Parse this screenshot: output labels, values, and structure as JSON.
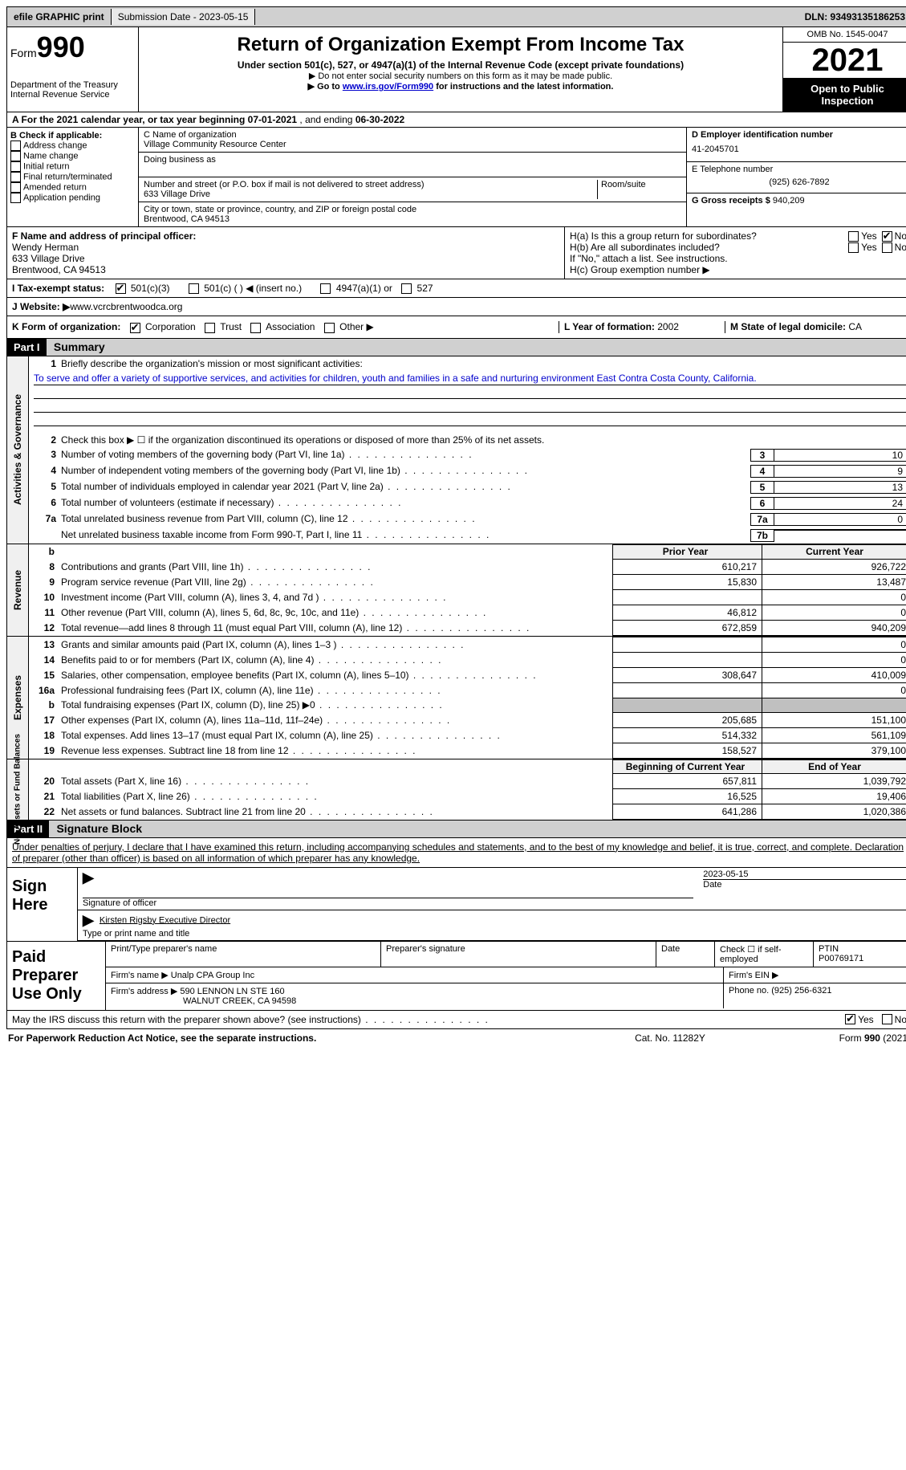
{
  "top": {
    "efile": "efile GRAPHIC print",
    "submission": "Submission Date - 2023-05-15",
    "dln": "DLN: 93493135186253"
  },
  "header": {
    "form_word": "Form",
    "form_num": "990",
    "dept": "Department of the Treasury",
    "irs": "Internal Revenue Service",
    "title": "Return of Organization Exempt From Income Tax",
    "sub": "Under section 501(c), 527, or 4947(a)(1) of the Internal Revenue Code (except private foundations)",
    "note1": "▶ Do not enter social security numbers on this form as it may be made public.",
    "note2_pre": "▶ Go to ",
    "note2_link": "www.irs.gov/Form990",
    "note2_post": " for instructions and the latest information.",
    "omb": "OMB No. 1545-0047",
    "year": "2021",
    "open": "Open to Public Inspection"
  },
  "rowA": {
    "text_pre": "A For the 2021 calendar year, or tax year beginning ",
    "begin": "07-01-2021",
    "mid": " , and ending ",
    "end": "06-30-2022"
  },
  "colB": {
    "title": "B Check if applicable:",
    "items": [
      "Address change",
      "Name change",
      "Initial return",
      "Final return/terminated",
      "Amended return",
      "Application pending"
    ]
  },
  "colC": {
    "name_label": "C Name of organization",
    "name": "Village Community Resource Center",
    "dba_label": "Doing business as",
    "street_label": "Number and street (or P.O. box if mail is not delivered to street address)",
    "room_label": "Room/suite",
    "street": "633 Village Drive",
    "city_label": "City or town, state or province, country, and ZIP or foreign postal code",
    "city": "Brentwood, CA  94513"
  },
  "colD": {
    "ein_label": "D Employer identification number",
    "ein": "41-2045701",
    "phone_label": "E Telephone number",
    "phone": "(925) 626-7892",
    "gross_label": "G Gross receipts $",
    "gross": "940,209"
  },
  "rowF": {
    "label": "F Name and address of principal officer:",
    "name": "Wendy Herman",
    "addr1": "633 Village Drive",
    "addr2": "Brentwood, CA  94513"
  },
  "rowH": {
    "ha": "H(a)  Is this a group return for subordinates?",
    "hb": "H(b)  Are all subordinates included?",
    "hb_note": "If \"No,\" attach a list. See instructions.",
    "hc": "H(c)  Group exemption number ▶",
    "yes": "Yes",
    "no": "No"
  },
  "rowI": {
    "label": "I  Tax-exempt status:",
    "c3": "501(c)(3)",
    "c": "501(c) (  ) ◀ (insert no.)",
    "a1": "4947(a)(1) or",
    "s527": "527"
  },
  "rowJ": {
    "label": "J  Website: ▶ ",
    "url": "www.vcrcbrentwoodca.org"
  },
  "rowK": {
    "label": "K Form of organization:",
    "corp": "Corporation",
    "trust": "Trust",
    "assoc": "Association",
    "other": "Other ▶",
    "L": "L Year of formation: ",
    "Lval": "2002",
    "M": "M State of legal domicile: ",
    "Mval": "CA"
  },
  "part1": {
    "header": "Part I",
    "title": "Summary",
    "side_act": "Activities & Governance",
    "side_rev": "Revenue",
    "side_exp": "Expenses",
    "side_net": "Net Assets or Fund Balances",
    "l1_label": "Briefly describe the organization's mission or most significant activities:",
    "l1_text": "To serve and offer a variety of supportive services, and activities for children, youth and families in a safe and nurturing environment East Contra Costa County, California.",
    "l2": "Check this box ▶ ☐ if the organization discontinued its operations or disposed of more than 25% of its net assets.",
    "l3": "Number of voting members of the governing body (Part VI, line 1a)",
    "l3v": "10",
    "l4": "Number of independent voting members of the governing body (Part VI, line 1b)",
    "l4v": "9",
    "l5": "Total number of individuals employed in calendar year 2021 (Part V, line 2a)",
    "l5v": "13",
    "l6": "Total number of volunteers (estimate if necessary)",
    "l6v": "24",
    "l7a": "Total unrelated business revenue from Part VIII, column (C), line 12",
    "l7av": "0",
    "l7b": "Net unrelated business taxable income from Form 990-T, Part I, line 11",
    "l7bv": "",
    "prior_h": "Prior Year",
    "curr_h": "Current Year",
    "rows_rev": [
      {
        "n": "8",
        "d": "Contributions and grants (Part VIII, line 1h)",
        "p": "610,217",
        "c": "926,722"
      },
      {
        "n": "9",
        "d": "Program service revenue (Part VIII, line 2g)",
        "p": "15,830",
        "c": "13,487"
      },
      {
        "n": "10",
        "d": "Investment income (Part VIII, column (A), lines 3, 4, and 7d )",
        "p": "",
        "c": "0"
      },
      {
        "n": "11",
        "d": "Other revenue (Part VIII, column (A), lines 5, 6d, 8c, 9c, 10c, and 11e)",
        "p": "46,812",
        "c": "0"
      },
      {
        "n": "12",
        "d": "Total revenue—add lines 8 through 11 (must equal Part VIII, column (A), line 12)",
        "p": "672,859",
        "c": "940,209"
      }
    ],
    "rows_exp": [
      {
        "n": "13",
        "d": "Grants and similar amounts paid (Part IX, column (A), lines 1–3 )",
        "p": "",
        "c": "0"
      },
      {
        "n": "14",
        "d": "Benefits paid to or for members (Part IX, column (A), line 4)",
        "p": "",
        "c": "0"
      },
      {
        "n": "15",
        "d": "Salaries, other compensation, employee benefits (Part IX, column (A), lines 5–10)",
        "p": "308,647",
        "c": "410,009"
      },
      {
        "n": "16a",
        "d": "Professional fundraising fees (Part IX, column (A), line 11e)",
        "p": "",
        "c": "0"
      },
      {
        "n": "b",
        "d": "Total fundraising expenses (Part IX, column (D), line 25) ▶0",
        "p": "GREY",
        "c": "GREY"
      },
      {
        "n": "17",
        "d": "Other expenses (Part IX, column (A), lines 11a–11d, 11f–24e)",
        "p": "205,685",
        "c": "151,100"
      },
      {
        "n": "18",
        "d": "Total expenses. Add lines 13–17 (must equal Part IX, column (A), line 25)",
        "p": "514,332",
        "c": "561,109"
      },
      {
        "n": "19",
        "d": "Revenue less expenses. Subtract line 18 from line 12",
        "p": "158,527",
        "c": "379,100"
      }
    ],
    "begin_h": "Beginning of Current Year",
    "end_h": "End of Year",
    "rows_net": [
      {
        "n": "20",
        "d": "Total assets (Part X, line 16)",
        "p": "657,811",
        "c": "1,039,792"
      },
      {
        "n": "21",
        "d": "Total liabilities (Part X, line 26)",
        "p": "16,525",
        "c": "19,406"
      },
      {
        "n": "22",
        "d": "Net assets or fund balances. Subtract line 21 from line 20",
        "p": "641,286",
        "c": "1,020,386"
      }
    ]
  },
  "part2": {
    "header": "Part II",
    "title": "Signature Block",
    "decl": "Under penalties of perjury, I declare that I have examined this return, including accompanying schedules and statements, and to the best of my knowledge and belief, it is true, correct, and complete. Declaration of preparer (other than officer) is based on all information of which preparer has any knowledge.",
    "sign_here": "Sign Here",
    "sig_off": "Signature of officer",
    "sig_date": "2023-05-15",
    "date_label": "Date",
    "name_title": "Kirsten Rigsby  Executive Director",
    "name_title_label": "Type or print name and title",
    "paid": "Paid Preparer Use Only",
    "prep_name_label": "Print/Type preparer's name",
    "prep_sig_label": "Preparer's signature",
    "check_se": "Check ☐ if self-employed",
    "ptin_label": "PTIN",
    "ptin": "P00769171",
    "firm_name_label": "Firm's name    ▶",
    "firm_name": "Unalp CPA Group Inc",
    "firm_ein_label": "Firm's EIN ▶",
    "firm_addr_label": "Firm's address ▶",
    "firm_addr1": "590 LENNON LN STE 160",
    "firm_addr2": "WALNUT CREEK, CA  94598",
    "firm_phone_label": "Phone no.",
    "firm_phone": "(925) 256-6321",
    "discuss": "May the IRS discuss this return with the preparer shown above? (see instructions)"
  },
  "footer": {
    "left": "For Paperwork Reduction Act Notice, see the separate instructions.",
    "mid": "Cat. No. 11282Y",
    "right": "Form 990 (2021)"
  }
}
